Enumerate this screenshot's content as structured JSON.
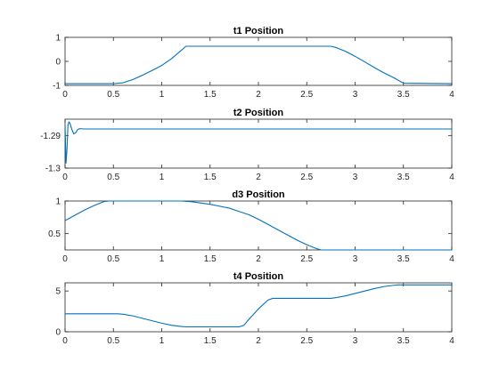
{
  "chart_data": [
    {
      "type": "line",
      "title": "t1 Position",
      "xlabel": "",
      "ylabel": "",
      "xlim": [
        0,
        4
      ],
      "ylim": [
        -1,
        1
      ],
      "x_ticks": [
        0,
        0.5,
        1,
        1.5,
        2,
        2.5,
        3,
        3.5,
        4
      ],
      "x_tick_labels": [
        "0",
        "0.5",
        "1",
        "1.5",
        "2",
        "2.5",
        "3",
        "3.5",
        "4"
      ],
      "y_ticks": [
        -1,
        0,
        1
      ],
      "y_tick_labels": [
        "-1",
        "0",
        "1"
      ],
      "grid": false,
      "color": "#0072BD",
      "series": [
        {
          "x": [
            0,
            0.5,
            0.6,
            0.7,
            0.8,
            0.9,
            1.0,
            1.1,
            1.2,
            1.25,
            2.75,
            2.8,
            2.9,
            3.0,
            3.1,
            3.2,
            3.3,
            3.4,
            3.5,
            4.0
          ],
          "y": [
            -0.93,
            -0.93,
            -0.89,
            -0.76,
            -0.58,
            -0.38,
            -0.17,
            0.11,
            0.45,
            0.63,
            0.63,
            0.58,
            0.42,
            0.21,
            -0.02,
            -0.26,
            -0.48,
            -0.68,
            -0.91,
            -0.93
          ]
        }
      ]
    },
    {
      "type": "line",
      "title": "t2 Position",
      "xlabel": "",
      "ylabel": "",
      "xlim": [
        0,
        4
      ],
      "ylim": [
        -1.3,
        -1.285
      ],
      "x_ticks": [
        0,
        0.5,
        1,
        1.5,
        2,
        2.5,
        3,
        3.5,
        4
      ],
      "x_tick_labels": [
        "0",
        "0.5",
        "1",
        "1.5",
        "2",
        "2.5",
        "3",
        "3.5",
        "4"
      ],
      "y_ticks": [
        -1.3,
        -1.29
      ],
      "y_tick_labels": [
        "-1.3",
        "-1.29"
      ],
      "grid": false,
      "color": "#0072BD",
      "series": [
        {
          "x": [
            0,
            0.01,
            0.02,
            0.03,
            0.04,
            0.05,
            0.07,
            0.09,
            0.11,
            0.13,
            0.15,
            0.2,
            0.3,
            4.0
          ],
          "y": [
            -1.2867,
            -1.2985,
            -1.2942,
            -1.2868,
            -1.2858,
            -1.2862,
            -1.2881,
            -1.2895,
            -1.2892,
            -1.2882,
            -1.2879,
            -1.288,
            -1.288,
            -1.288
          ]
        }
      ]
    },
    {
      "type": "line",
      "title": "d3 Position",
      "xlabel": "",
      "ylabel": "",
      "xlim": [
        0,
        4
      ],
      "ylim": [
        0.25,
        1
      ],
      "x_ticks": [
        0,
        0.5,
        1,
        1.5,
        2,
        2.5,
        3,
        3.5,
        4
      ],
      "x_tick_labels": [
        "0",
        "0.5",
        "1",
        "1.5",
        "2",
        "2.5",
        "3",
        "3.5",
        "4"
      ],
      "y_ticks": [
        0.5,
        1
      ],
      "y_tick_labels": [
        "0.5",
        "1"
      ],
      "grid": false,
      "color": "#0072BD",
      "series": [
        {
          "x": [
            0,
            0.1,
            0.2,
            0.3,
            0.4,
            0.45,
            1.2,
            1.3,
            1.4,
            1.5,
            1.6,
            1.7,
            1.8,
            1.9,
            2.0,
            2.1,
            2.2,
            2.3,
            2.4,
            2.5,
            2.6,
            2.65,
            4.0
          ],
          "y": [
            0.7,
            0.78,
            0.86,
            0.93,
            0.99,
            1.0,
            1.0,
            0.99,
            0.97,
            0.95,
            0.92,
            0.89,
            0.84,
            0.79,
            0.72,
            0.64,
            0.56,
            0.48,
            0.4,
            0.33,
            0.27,
            0.25,
            0.25
          ]
        }
      ]
    },
    {
      "type": "line",
      "title": "t4 Position",
      "xlabel": "",
      "ylabel": "",
      "xlim": [
        0,
        4
      ],
      "ylim": [
        0,
        6
      ],
      "x_ticks": [
        0,
        0.5,
        1,
        1.5,
        2,
        2.5,
        3,
        3.5,
        4
      ],
      "x_tick_labels": [
        "0",
        "0.5",
        "1",
        "1.5",
        "2",
        "2.5",
        "3",
        "3.5",
        "4"
      ],
      "y_ticks": [
        0,
        5
      ],
      "y_tick_labels": [
        "0",
        "5"
      ],
      "grid": false,
      "color": "#0072BD",
      "series": [
        {
          "x": [
            0,
            0.55,
            0.6,
            0.7,
            0.8,
            0.9,
            1.0,
            1.1,
            1.2,
            1.25,
            1.8,
            1.85,
            1.9,
            2.0,
            2.1,
            2.15,
            2.75,
            2.8,
            2.9,
            3.0,
            3.1,
            3.2,
            3.3,
            3.4,
            3.45,
            4.0
          ],
          "y": [
            2.2,
            2.2,
            2.15,
            1.95,
            1.65,
            1.35,
            1.05,
            0.8,
            0.65,
            0.6,
            0.6,
            0.8,
            1.5,
            2.8,
            3.9,
            4.1,
            4.1,
            4.18,
            4.4,
            4.7,
            5.0,
            5.3,
            5.55,
            5.7,
            5.75,
            5.75
          ]
        }
      ]
    }
  ]
}
